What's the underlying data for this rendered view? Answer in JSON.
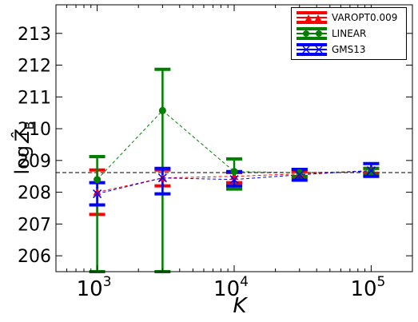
{
  "chart_data": {
    "type": "scatter",
    "xscale": "log",
    "xlabel": "K",
    "ylabel": "log Ẑ_B",
    "xlim": [
      500,
      200000
    ],
    "ylim": [
      205.5,
      213.9
    ],
    "xticks": [
      {
        "value": 1000,
        "base": "10",
        "exp": "3"
      },
      {
        "value": 10000,
        "base": "10",
        "exp": "4"
      },
      {
        "value": 100000,
        "base": "10",
        "exp": "5"
      }
    ],
    "yticks": [
      206,
      207,
      208,
      209,
      210,
      211,
      212,
      213
    ],
    "reference_line": 208.62,
    "grid": false,
    "legend_position": "top-right",
    "series": [
      {
        "name": "VAROPT0.009",
        "color": "#ff0000",
        "marker": "triangle",
        "x": [
          1000,
          3000,
          10000,
          30000,
          100000
        ],
        "y": [
          208.0,
          208.45,
          208.5,
          208.58,
          208.68
        ],
        "yerr_low": [
          207.3,
          208.2,
          208.3,
          208.48,
          208.6
        ],
        "yerr_high": [
          208.7,
          208.7,
          208.62,
          208.65,
          208.75
        ]
      },
      {
        "name": "LINEAR",
        "color": "#007f00",
        "marker": "circle",
        "x": [
          1000,
          3000,
          10000,
          30000,
          100000
        ],
        "y": [
          208.4,
          210.57,
          208.65,
          208.62,
          208.65
        ],
        "yerr_low": [
          205.5,
          205.5,
          208.1,
          208.5,
          208.55
        ],
        "yerr_high": [
          209.12,
          211.87,
          209.05,
          208.72,
          208.75
        ]
      },
      {
        "name": "GMS13",
        "color": "#0000ff",
        "marker": "x",
        "x": [
          1000,
          3000,
          10000,
          30000,
          100000
        ],
        "y": [
          207.95,
          208.45,
          208.4,
          208.55,
          208.68
        ],
        "yerr_low": [
          207.6,
          207.95,
          208.2,
          208.38,
          208.5
        ],
        "yerr_high": [
          208.3,
          208.75,
          208.65,
          208.72,
          208.9
        ]
      }
    ]
  }
}
